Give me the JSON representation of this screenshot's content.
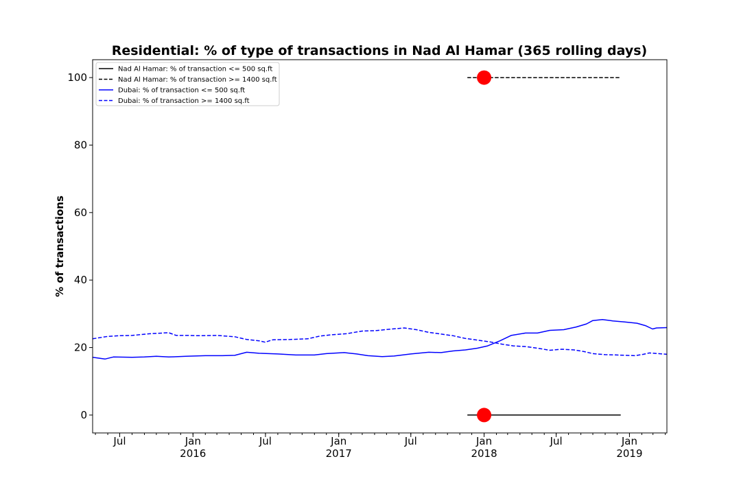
{
  "chart_data": {
    "type": "line",
    "title": "Residential: % of type of transactions in Nad Al Hamar (365 rolling days)",
    "xlabel": "",
    "ylabel": "% of transactions",
    "xlim": [
      "2015-04-24",
      "2019-04-05"
    ],
    "ylim": [
      -5.3,
      105.3
    ],
    "y_ticks": [
      0,
      20,
      40,
      60,
      80,
      100
    ],
    "x_ticks": [
      {
        "date": "2015-07-01",
        "label": "Jul",
        "year": ""
      },
      {
        "date": "2016-01-01",
        "label": "Jan",
        "year": "2016"
      },
      {
        "date": "2016-07-01",
        "label": "Jul",
        "year": ""
      },
      {
        "date": "2017-01-01",
        "label": "Jan",
        "year": "2017"
      },
      {
        "date": "2017-07-01",
        "label": "Jul",
        "year": ""
      },
      {
        "date": "2018-01-01",
        "label": "Jan",
        "year": "2018"
      },
      {
        "date": "2018-07-01",
        "label": "Jul",
        "year": ""
      },
      {
        "date": "2019-01-01",
        "label": "Jan",
        "year": "2019"
      }
    ],
    "grid": false,
    "legend_position": "top-left",
    "series": [
      {
        "name": "Nad Al Hamar: % of transaction <= 500 sq.ft",
        "color": "#000000",
        "style": "solid",
        "points": [
          [
            "2017-11-20",
            0
          ],
          [
            "2018-12-10",
            0
          ]
        ]
      },
      {
        "name": "Nad Al Hamar: % of transaction >= 1400 sq.ft",
        "color": "#000000",
        "style": "dashed",
        "points": [
          [
            "2017-11-20",
            100
          ],
          [
            "2018-12-10",
            100
          ]
        ]
      },
      {
        "name": "Dubai: % of transaction <= 500 sq.ft",
        "color": "#0000ff",
        "style": "solid",
        "points": [
          [
            "2015-04-24",
            17.1
          ],
          [
            "2015-05-25",
            16.6
          ],
          [
            "2015-06-15",
            17.2
          ],
          [
            "2015-08-01",
            17.1
          ],
          [
            "2015-09-01",
            17.2
          ],
          [
            "2015-10-01",
            17.4
          ],
          [
            "2015-11-01",
            17.2
          ],
          [
            "2015-12-15",
            17.4
          ],
          [
            "2016-02-01",
            17.6
          ],
          [
            "2016-03-15",
            17.6
          ],
          [
            "2016-04-15",
            17.7
          ],
          [
            "2016-05-15",
            18.6
          ],
          [
            "2016-06-15",
            18.3
          ],
          [
            "2016-08-01",
            18.1
          ],
          [
            "2016-09-15",
            17.8
          ],
          [
            "2016-11-01",
            17.8
          ],
          [
            "2016-12-01",
            18.2
          ],
          [
            "2017-01-15",
            18.5
          ],
          [
            "2017-02-15",
            18.1
          ],
          [
            "2017-03-15",
            17.6
          ],
          [
            "2017-04-20",
            17.3
          ],
          [
            "2017-05-20",
            17.5
          ],
          [
            "2017-07-01",
            18.1
          ],
          [
            "2017-08-15",
            18.6
          ],
          [
            "2017-09-15",
            18.5
          ],
          [
            "2017-10-15",
            19.0
          ],
          [
            "2017-11-15",
            19.3
          ],
          [
            "2017-12-15",
            19.8
          ],
          [
            "2018-01-10",
            20.5
          ],
          [
            "2018-02-10",
            22.0
          ],
          [
            "2018-03-10",
            23.6
          ],
          [
            "2018-04-15",
            24.3
          ],
          [
            "2018-05-15",
            24.3
          ],
          [
            "2018-06-15",
            25.1
          ],
          [
            "2018-07-20",
            25.3
          ],
          [
            "2018-08-20",
            26.1
          ],
          [
            "2018-09-15",
            27.0
          ],
          [
            "2018-10-01",
            28.0
          ],
          [
            "2018-10-25",
            28.3
          ],
          [
            "2018-11-20",
            27.9
          ],
          [
            "2018-12-20",
            27.6
          ],
          [
            "2019-01-20",
            27.2
          ],
          [
            "2019-02-10",
            26.5
          ],
          [
            "2019-02-28",
            25.5
          ],
          [
            "2019-03-10",
            25.8
          ],
          [
            "2019-04-05",
            25.9
          ]
        ]
      },
      {
        "name": "Dubai: % of transaction >= 1400 sq.ft",
        "color": "#0000ff",
        "style": "dashed",
        "points": [
          [
            "2015-04-24",
            22.6
          ],
          [
            "2015-06-01",
            23.3
          ],
          [
            "2015-07-01",
            23.5
          ],
          [
            "2015-08-01",
            23.6
          ],
          [
            "2015-09-15",
            24.1
          ],
          [
            "2015-11-01",
            24.4
          ],
          [
            "2015-11-20",
            23.6
          ],
          [
            "2015-12-20",
            23.6
          ],
          [
            "2016-01-15",
            23.5
          ],
          [
            "2016-03-01",
            23.6
          ],
          [
            "2016-04-15",
            23.2
          ],
          [
            "2016-05-15",
            22.4
          ],
          [
            "2016-06-15",
            22.0
          ],
          [
            "2016-06-30",
            21.6
          ],
          [
            "2016-07-20",
            22.3
          ],
          [
            "2016-09-01",
            22.4
          ],
          [
            "2016-10-15",
            22.6
          ],
          [
            "2016-11-15",
            23.4
          ],
          [
            "2016-12-15",
            23.8
          ],
          [
            "2017-01-20",
            24.1
          ],
          [
            "2017-03-01",
            24.9
          ],
          [
            "2017-04-01",
            25.0
          ],
          [
            "2017-05-15",
            25.5
          ],
          [
            "2017-06-15",
            25.8
          ],
          [
            "2017-07-15",
            25.3
          ],
          [
            "2017-08-15",
            24.5
          ],
          [
            "2017-09-15",
            24.0
          ],
          [
            "2017-10-15",
            23.5
          ],
          [
            "2017-11-15",
            22.7
          ],
          [
            "2017-12-15",
            22.2
          ],
          [
            "2018-01-15",
            21.7
          ],
          [
            "2018-02-15",
            21.0
          ],
          [
            "2018-03-15",
            20.5
          ],
          [
            "2018-04-15",
            20.3
          ],
          [
            "2018-05-15",
            19.8
          ],
          [
            "2018-06-15",
            19.2
          ],
          [
            "2018-07-15",
            19.5
          ],
          [
            "2018-08-15",
            19.3
          ],
          [
            "2018-09-10",
            18.8
          ],
          [
            "2018-10-01",
            18.2
          ],
          [
            "2018-11-01",
            17.9
          ],
          [
            "2018-12-01",
            17.8
          ],
          [
            "2019-01-15",
            17.6
          ],
          [
            "2019-02-05",
            18.0
          ],
          [
            "2019-02-20",
            18.4
          ],
          [
            "2019-03-15",
            18.2
          ],
          [
            "2019-04-05",
            18.0
          ]
        ]
      }
    ],
    "markers": [
      {
        "date": "2018-01-01",
        "value": 100,
        "color": "#ff0000"
      },
      {
        "date": "2018-01-01",
        "value": 0,
        "color": "#ff0000"
      }
    ]
  }
}
